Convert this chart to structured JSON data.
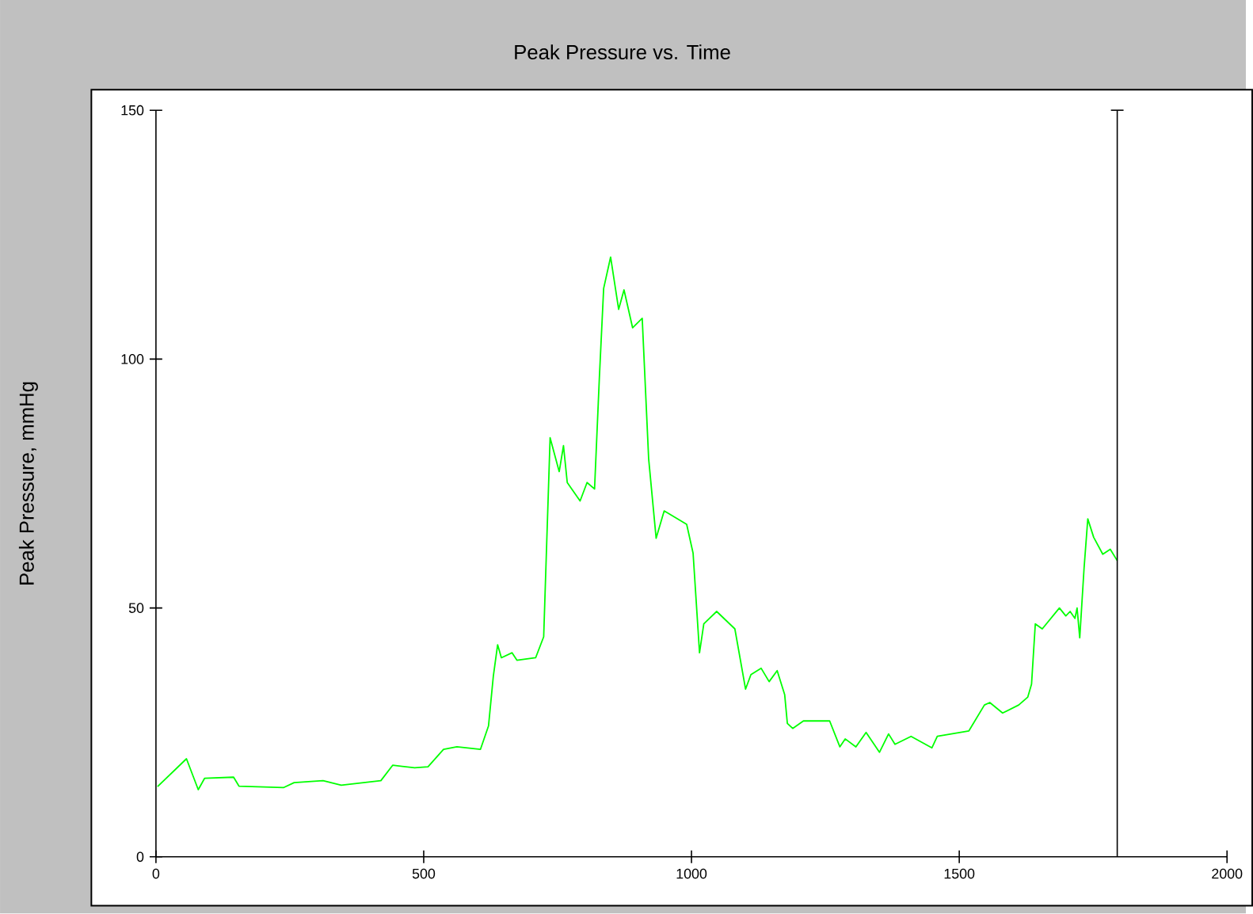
{
  "chart_data": {
    "type": "line",
    "title": "Peak Pressure vs. Time",
    "ylabel": "Peak Pressure, mmHg",
    "xlim": [
      0,
      2000
    ],
    "ylim": [
      0,
      150
    ],
    "xticks": [
      0,
      500,
      1000,
      1500,
      2000
    ],
    "yticks": [
      0,
      50,
      100,
      150
    ],
    "grid": false,
    "ref_lines": [
      {
        "axis": "x",
        "value": 1795,
        "color": "#000000"
      }
    ],
    "series": [
      {
        "color": "#00ff00",
        "x": [
          3,
          57,
          79,
          91,
          145,
          155,
          238,
          258,
          312,
          346,
          420,
          442,
          483,
          508,
          537,
          562,
          606,
          621,
          630,
          638,
          645,
          665,
          674,
          709,
          724,
          736,
          753,
          761,
          768,
          792,
          805,
          819,
          828,
          836,
          849,
          864,
          874,
          890,
          908,
          920,
          934,
          949,
          991,
          1003,
          1015,
          1023,
          1047,
          1081,
          1101,
          1111,
          1130,
          1145,
          1160,
          1174,
          1179,
          1189,
          1209,
          1258,
          1277,
          1287,
          1307,
          1326,
          1351,
          1368,
          1380,
          1410,
          1449,
          1459,
          1518,
          1547,
          1557,
          1581,
          1611,
          1628,
          1635,
          1642,
          1655,
          1687,
          1699,
          1707,
          1716,
          1720,
          1725,
          1733,
          1740,
          1751,
          1768,
          1782,
          1795
        ],
        "values": [
          14.1,
          19.7,
          13.5,
          15.8,
          16,
          14.2,
          13.9,
          14.9,
          15.3,
          14.4,
          15.3,
          18.4,
          17.9,
          18.1,
          21.6,
          22.1,
          21.6,
          26.3,
          36.3,
          42.6,
          40,
          41,
          39.5,
          40,
          44.2,
          84.2,
          77.4,
          82.6,
          75.2,
          71.5,
          75.2,
          73.9,
          96.3,
          114.2,
          120.5,
          110,
          113.9,
          106.3,
          108.2,
          80,
          64,
          69.5,
          66.8,
          61,
          41,
          46.8,
          49.3,
          45.8,
          33.7,
          36.6,
          37.9,
          35.2,
          37.4,
          32.6,
          26.8,
          25.8,
          27.3,
          27.3,
          22.1,
          23.7,
          22.1,
          25,
          21,
          24.7,
          22.6,
          24.2,
          21.9,
          24.2,
          25.3,
          30.5,
          31,
          28.9,
          30.5,
          32.1,
          34.7,
          46.8,
          45.8,
          50,
          48.4,
          49.3,
          47.9,
          50,
          44,
          57.9,
          67.9,
          64.2,
          60.8,
          61.8,
          59.5
        ]
      }
    ]
  }
}
